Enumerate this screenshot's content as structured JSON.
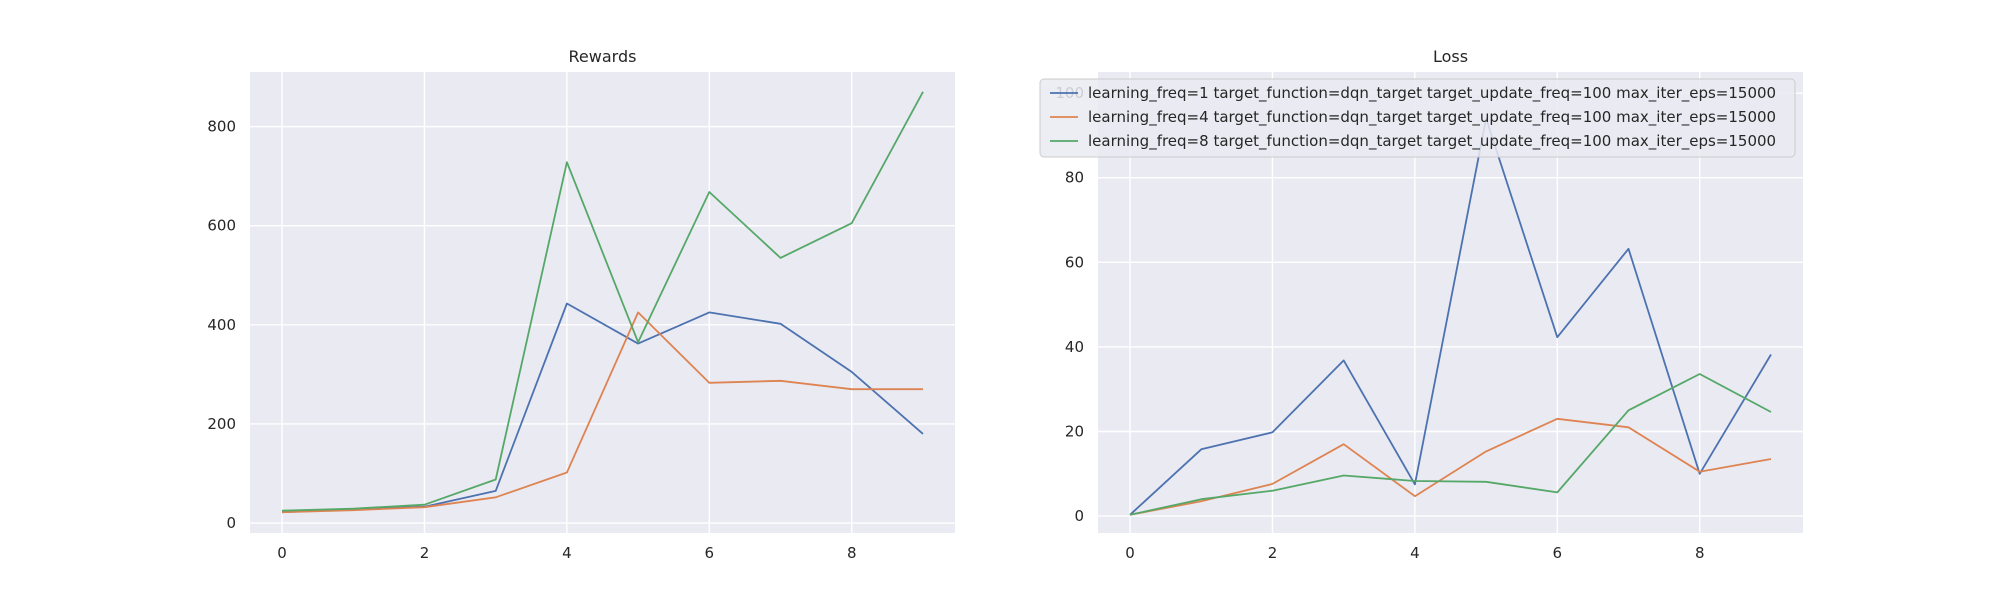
{
  "chart_data": [
    {
      "type": "line",
      "title": "Rewards",
      "xlabel": "",
      "ylabel": "",
      "xlim": [
        -0.45,
        9.45
      ],
      "ylim": [
        -20,
        910
      ],
      "xticks": [
        0,
        2,
        4,
        6,
        8
      ],
      "yticks": [
        0,
        200,
        400,
        600,
        800
      ],
      "grid": true,
      "x": [
        0,
        1,
        2,
        3,
        4,
        5,
        6,
        7,
        8,
        9
      ],
      "series": [
        {
          "name": "learning_freq=1 target_function=dqn_target target_update_freq=100 max_iter_eps=15000",
          "color": "#4c72b0",
          "values": [
            22,
            28,
            33,
            65,
            443,
            362,
            425,
            402,
            305,
            180
          ]
        },
        {
          "name": "learning_freq=4 target_function=dqn_target target_update_freq=100 max_iter_eps=15000",
          "color": "#dd8452",
          "values": [
            22,
            26,
            32,
            52,
            102,
            425,
            283,
            287,
            270,
            270
          ]
        },
        {
          "name": "learning_freq=8 target_function=dqn_target target_update_freq=100 max_iter_eps=15000",
          "color": "#55a868",
          "values": [
            25,
            29,
            37,
            88,
            728,
            365,
            668,
            535,
            605,
            870
          ]
        }
      ]
    },
    {
      "type": "line",
      "title": "Loss",
      "xlabel": "",
      "ylabel": "",
      "xlim": [
        -0.45,
        9.45
      ],
      "ylim": [
        -4,
        105
      ],
      "xticks": [
        0,
        2,
        4,
        6,
        8
      ],
      "yticks": [
        0,
        20,
        40,
        60,
        80,
        100
      ],
      "grid": true,
      "legend": "upper center",
      "x": [
        0,
        1,
        2,
        3,
        4,
        5,
        6,
        7,
        8,
        9
      ],
      "series": [
        {
          "name": "learning_freq=1 target_function=dqn_target target_update_freq=100 max_iter_eps=15000",
          "color": "#4c72b0",
          "values": [
            0.3,
            15.8,
            19.8,
            36.8,
            7.5,
            94,
            42.3,
            63.2,
            10.0,
            38.2
          ]
        },
        {
          "name": "learning_freq=4 target_function=dqn_target target_update_freq=100 max_iter_eps=15000",
          "color": "#dd8452",
          "values": [
            0.3,
            3.5,
            7.6,
            17.0,
            4.7,
            15.3,
            23.0,
            21.0,
            10.5,
            13.5
          ]
        },
        {
          "name": "learning_freq=8 target_function=dqn_target target_update_freq=100 max_iter_eps=15000",
          "color": "#55a868",
          "values": [
            0.3,
            4.0,
            6.0,
            9.6,
            8.3,
            8.1,
            5.6,
            25.0,
            33.6,
            24.6
          ]
        }
      ]
    }
  ]
}
